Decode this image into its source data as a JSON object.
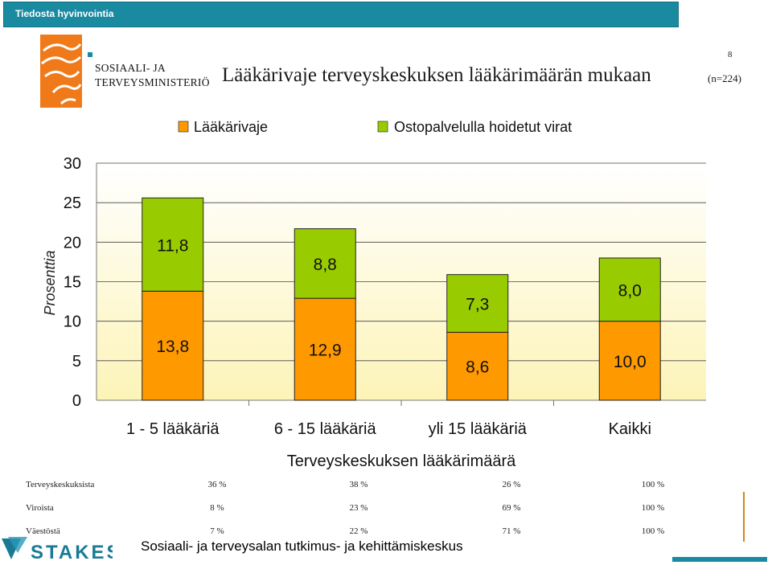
{
  "header": {
    "title": "Tiedosta hyvinvointia"
  },
  "ministry": {
    "line1": "SOSIAALI- JA",
    "line2": "TERVEYSMINISTERIÖ"
  },
  "slide": {
    "page_number": "8",
    "title": "Lääkärivaje terveyskeskuksen lääkärimäärän mukaan",
    "n_label": "(n=224)"
  },
  "chart_data": {
    "type": "bar",
    "stacked": true,
    "categories": [
      "1 - 5 lääkäriä",
      "6 - 15 lääkäriä",
      "yli 15 lääkäriä",
      "Kaikki"
    ],
    "series": [
      {
        "name": "Lääkärivaje",
        "values": [
          13.8,
          12.9,
          8.6,
          10.0
        ],
        "labels": [
          "13,8",
          "12,9",
          "8,6",
          "10,0"
        ],
        "color": "#ff9900"
      },
      {
        "name": "Ostopalvelulla hoidetut virat",
        "values": [
          11.8,
          8.8,
          7.3,
          8.0
        ],
        "labels": [
          "11,8",
          "8,8",
          "7,3",
          "8,0"
        ],
        "color": "#99cc00"
      }
    ],
    "ylabel": "Prosenttia",
    "xlabel": "Terveyskeskuksen lääkärimäärä",
    "ylim": [
      0,
      30
    ],
    "yticks": [
      0,
      5,
      10,
      15,
      20,
      25,
      30
    ],
    "grid": true,
    "legend_position": "top"
  },
  "table": {
    "rows": [
      {
        "label": "Terveyskeskuksista",
        "values": [
          "36 %",
          "38 %",
          "26 %",
          "100 %"
        ]
      },
      {
        "label": "Viroista",
        "values": [
          "8 %",
          "23 %",
          "69 %",
          "100 %"
        ]
      },
      {
        "label": "Väestöstä",
        "values": [
          "7 %",
          "22 %",
          "71 %",
          "100 %"
        ]
      }
    ]
  },
  "footer": {
    "logo_text": "STAKES",
    "text": "Sosiaali- ja terveysalan tutkimus- ja kehittämiskeskus"
  },
  "colors": {
    "bar_orange": "#ff9900",
    "bar_green": "#99cc00",
    "plot_bg_top": "#ffffff",
    "plot_bg_bottom": "#fdf4b8",
    "accent": "#1a8aa0"
  }
}
